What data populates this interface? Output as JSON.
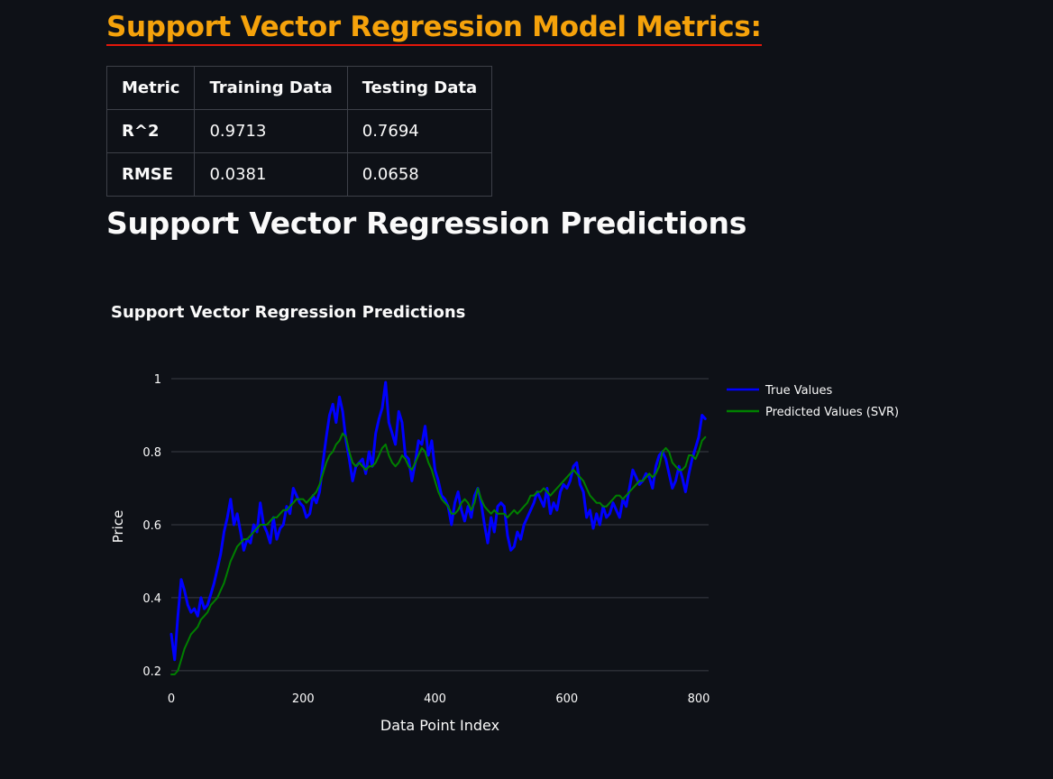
{
  "header": {
    "metrics_title": "Support Vector Regression Model Metrics:"
  },
  "metrics_table": {
    "columns": [
      "Metric",
      "Training Data",
      "Testing Data"
    ],
    "rows": [
      [
        "R^2",
        "0.9713",
        "0.7694"
      ],
      [
        "RMSE",
        "0.0381",
        "0.0658"
      ]
    ]
  },
  "section": {
    "title": "Support Vector Regression Predictions"
  },
  "colors": {
    "background": "#0e1117",
    "metrics_title": "#f5a20b",
    "underline": "#e3170a",
    "true_series": "#0000ff",
    "predicted_series": "#008000",
    "grid": "#3a3d45"
  },
  "chart_data": {
    "type": "line",
    "title": "Support Vector Regression Predictions",
    "xlabel": "Data Point Index",
    "ylabel": "Price",
    "xlim": [
      0,
      815
    ],
    "ylim": [
      0.18,
      1.0
    ],
    "xticks": [
      0,
      200,
      400,
      600,
      800
    ],
    "yticks": [
      0.2,
      0.4,
      0.6,
      0.8,
      1
    ],
    "grid": true,
    "legend_position": "top-right",
    "series": [
      {
        "name": "True Values",
        "color": "#0000ff",
        "x": [
          0,
          5,
          10,
          15,
          20,
          25,
          30,
          35,
          40,
          45,
          50,
          55,
          60,
          65,
          70,
          75,
          80,
          85,
          90,
          95,
          100,
          105,
          110,
          115,
          120,
          125,
          130,
          135,
          140,
          145,
          150,
          155,
          160,
          165,
          170,
          175,
          180,
          185,
          190,
          195,
          200,
          205,
          210,
          215,
          220,
          225,
          230,
          235,
          240,
          245,
          250,
          255,
          260,
          265,
          270,
          275,
          280,
          285,
          290,
          295,
          300,
          305,
          310,
          315,
          320,
          325,
          330,
          335,
          340,
          345,
          350,
          355,
          360,
          365,
          370,
          375,
          380,
          385,
          390,
          395,
          400,
          405,
          410,
          415,
          420,
          425,
          430,
          435,
          440,
          445,
          450,
          455,
          460,
          465,
          470,
          475,
          480,
          485,
          490,
          495,
          500,
          505,
          510,
          515,
          520,
          525,
          530,
          535,
          540,
          545,
          550,
          555,
          560,
          565,
          570,
          575,
          580,
          585,
          590,
          595,
          600,
          605,
          610,
          615,
          620,
          625,
          630,
          635,
          640,
          645,
          650,
          655,
          660,
          665,
          670,
          675,
          680,
          685,
          690,
          695,
          700,
          705,
          710,
          715,
          720,
          725,
          730,
          735,
          740,
          745,
          750,
          755,
          760,
          765,
          770,
          775,
          780,
          785,
          790,
          795,
          800,
          805,
          810
        ],
        "values": [
          0.3,
          0.23,
          0.35,
          0.45,
          0.42,
          0.38,
          0.36,
          0.37,
          0.35,
          0.4,
          0.37,
          0.38,
          0.41,
          0.44,
          0.48,
          0.52,
          0.58,
          0.62,
          0.67,
          0.6,
          0.63,
          0.58,
          0.53,
          0.56,
          0.55,
          0.6,
          0.58,
          0.66,
          0.6,
          0.58,
          0.55,
          0.62,
          0.56,
          0.59,
          0.6,
          0.65,
          0.63,
          0.7,
          0.68,
          0.66,
          0.65,
          0.62,
          0.63,
          0.68,
          0.66,
          0.69,
          0.77,
          0.84,
          0.9,
          0.93,
          0.88,
          0.95,
          0.91,
          0.83,
          0.78,
          0.72,
          0.76,
          0.77,
          0.78,
          0.74,
          0.8,
          0.76,
          0.85,
          0.89,
          0.92,
          0.99,
          0.88,
          0.85,
          0.82,
          0.91,
          0.88,
          0.79,
          0.78,
          0.72,
          0.77,
          0.83,
          0.82,
          0.87,
          0.79,
          0.83,
          0.75,
          0.72,
          0.68,
          0.67,
          0.65,
          0.6,
          0.66,
          0.69,
          0.64,
          0.61,
          0.65,
          0.62,
          0.68,
          0.7,
          0.66,
          0.6,
          0.55,
          0.62,
          0.58,
          0.65,
          0.66,
          0.65,
          0.57,
          0.53,
          0.54,
          0.58,
          0.56,
          0.6,
          0.62,
          0.64,
          0.66,
          0.69,
          0.67,
          0.65,
          0.7,
          0.63,
          0.66,
          0.64,
          0.69,
          0.71,
          0.7,
          0.72,
          0.76,
          0.77,
          0.71,
          0.69,
          0.62,
          0.64,
          0.59,
          0.63,
          0.6,
          0.65,
          0.62,
          0.63,
          0.66,
          0.64,
          0.62,
          0.67,
          0.65,
          0.7,
          0.75,
          0.73,
          0.71,
          0.72,
          0.74,
          0.73,
          0.7,
          0.76,
          0.79,
          0.8,
          0.78,
          0.74,
          0.7,
          0.72,
          0.76,
          0.73,
          0.69,
          0.74,
          0.78,
          0.81,
          0.84,
          0.9,
          0.89
        ]
      },
      {
        "name": "Predicted Values (SVR)",
        "color": "#008000",
        "x": [
          0,
          5,
          10,
          15,
          20,
          25,
          30,
          35,
          40,
          45,
          50,
          55,
          60,
          65,
          70,
          75,
          80,
          85,
          90,
          95,
          100,
          105,
          110,
          115,
          120,
          125,
          130,
          135,
          140,
          145,
          150,
          155,
          160,
          165,
          170,
          175,
          180,
          185,
          190,
          195,
          200,
          205,
          210,
          215,
          220,
          225,
          230,
          235,
          240,
          245,
          250,
          255,
          260,
          265,
          270,
          275,
          280,
          285,
          290,
          295,
          300,
          305,
          310,
          315,
          320,
          325,
          330,
          335,
          340,
          345,
          350,
          355,
          360,
          365,
          370,
          375,
          380,
          385,
          390,
          395,
          400,
          405,
          410,
          415,
          420,
          425,
          430,
          435,
          440,
          445,
          450,
          455,
          460,
          465,
          470,
          475,
          480,
          485,
          490,
          495,
          500,
          505,
          510,
          515,
          520,
          525,
          530,
          535,
          540,
          545,
          550,
          555,
          560,
          565,
          570,
          575,
          580,
          585,
          590,
          595,
          600,
          605,
          610,
          615,
          620,
          625,
          630,
          635,
          640,
          645,
          650,
          655,
          660,
          665,
          670,
          675,
          680,
          685,
          690,
          695,
          700,
          705,
          710,
          715,
          720,
          725,
          730,
          735,
          740,
          745,
          750,
          755,
          760,
          765,
          770,
          775,
          780,
          785,
          790,
          795,
          800,
          805,
          810
        ],
        "values": [
          0.19,
          0.19,
          0.2,
          0.23,
          0.26,
          0.28,
          0.3,
          0.31,
          0.32,
          0.34,
          0.35,
          0.36,
          0.38,
          0.39,
          0.4,
          0.42,
          0.44,
          0.47,
          0.5,
          0.52,
          0.54,
          0.55,
          0.56,
          0.56,
          0.57,
          0.58,
          0.59,
          0.6,
          0.6,
          0.6,
          0.61,
          0.62,
          0.62,
          0.63,
          0.64,
          0.64,
          0.65,
          0.66,
          0.67,
          0.67,
          0.67,
          0.66,
          0.67,
          0.68,
          0.69,
          0.71,
          0.74,
          0.77,
          0.79,
          0.8,
          0.82,
          0.83,
          0.85,
          0.84,
          0.8,
          0.77,
          0.76,
          0.77,
          0.76,
          0.75,
          0.76,
          0.76,
          0.77,
          0.79,
          0.81,
          0.82,
          0.79,
          0.77,
          0.76,
          0.77,
          0.79,
          0.78,
          0.76,
          0.75,
          0.77,
          0.79,
          0.81,
          0.8,
          0.77,
          0.75,
          0.72,
          0.69,
          0.67,
          0.66,
          0.65,
          0.63,
          0.63,
          0.64,
          0.66,
          0.67,
          0.66,
          0.64,
          0.66,
          0.7,
          0.67,
          0.65,
          0.64,
          0.63,
          0.64,
          0.63,
          0.63,
          0.63,
          0.62,
          0.63,
          0.64,
          0.63,
          0.64,
          0.65,
          0.66,
          0.68,
          0.68,
          0.69,
          0.69,
          0.7,
          0.69,
          0.68,
          0.69,
          0.7,
          0.71,
          0.72,
          0.73,
          0.74,
          0.75,
          0.74,
          0.73,
          0.72,
          0.7,
          0.68,
          0.67,
          0.66,
          0.66,
          0.65,
          0.65,
          0.66,
          0.67,
          0.68,
          0.68,
          0.67,
          0.68,
          0.69,
          0.7,
          0.71,
          0.72,
          0.72,
          0.73,
          0.74,
          0.73,
          0.74,
          0.76,
          0.8,
          0.81,
          0.8,
          0.77,
          0.76,
          0.75,
          0.75,
          0.76,
          0.79,
          0.79,
          0.78,
          0.8,
          0.83,
          0.84
        ]
      }
    ]
  }
}
